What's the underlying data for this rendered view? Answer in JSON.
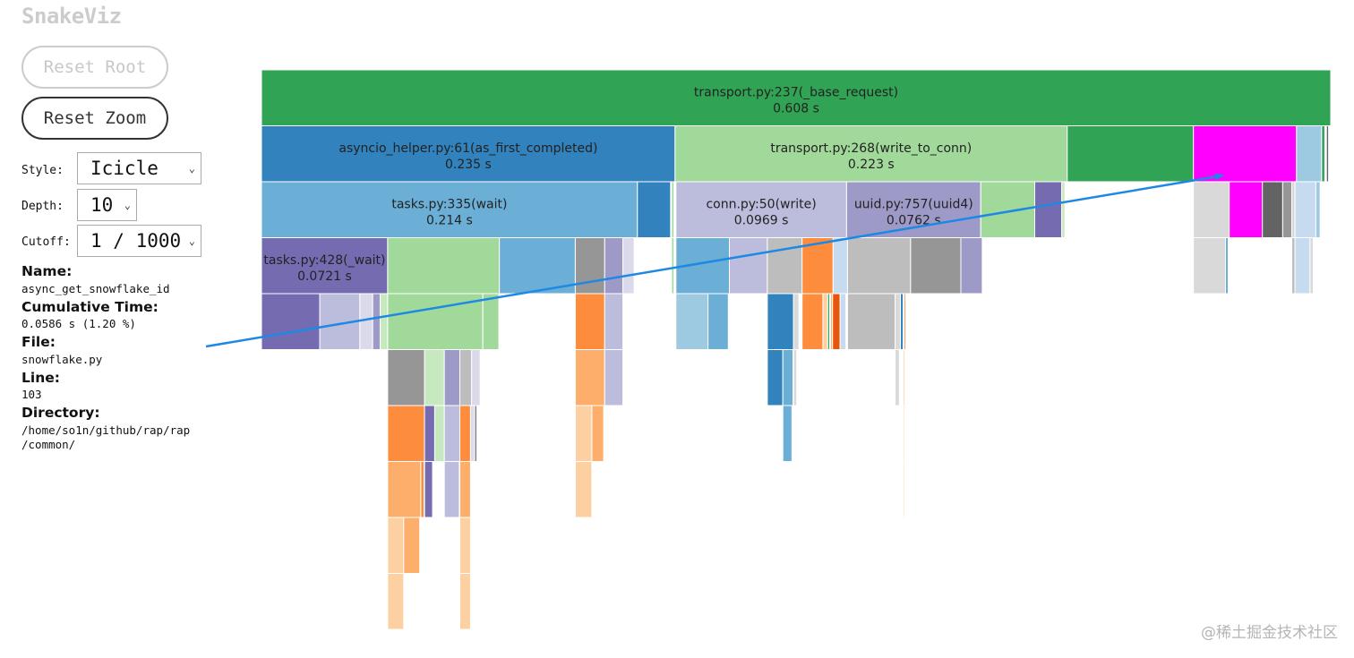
{
  "app": {
    "title": "SnakeViz"
  },
  "buttons": {
    "reset_root": "Reset Root",
    "reset_zoom": "Reset Zoom"
  },
  "controls": {
    "style": {
      "label": "Style:",
      "value": "Icicle"
    },
    "depth": {
      "label": "Depth:",
      "value": "10"
    },
    "cutoff": {
      "label": "Cutoff:",
      "value": "1 / 1000"
    }
  },
  "info": {
    "name_label": "Name:",
    "name": "async_get_snowflake_id",
    "cumtime_label": "Cumulative Time:",
    "cumtime": "0.0586 s (1.20 %)",
    "file_label": "File:",
    "file": "snowflake.py",
    "line_label": "Line:",
    "line": "103",
    "dir_label": "Directory:",
    "dir_line1": "/home/so1n/github/rap/rap",
    "dir_line2": "/common/"
  },
  "colors": {
    "dark_green": "#31a354",
    "light_green": "#a1d99b",
    "pale_green": "#c7e9c0",
    "dark_blue": "#3182bd",
    "mid_blue": "#6baed6",
    "light_blue": "#9ecae1",
    "pale_blue": "#c6dbef",
    "dark_purple": "#756bb1",
    "mid_purple": "#9e9ac8",
    "light_purple": "#bcbddc",
    "pale_purple": "#dadaeb",
    "dark_orange": "#e6550d",
    "orange": "#fd8d3c",
    "light_orange": "#fdae6b",
    "pale_orange": "#fdd0a2",
    "dark_gray": "#636363",
    "gray": "#969696",
    "light_gray": "#bdbdbd",
    "pale_gray": "#d9d9d9",
    "highlight": "#ff00ff",
    "arrow": "#1e88e5"
  },
  "chart_data": {
    "type": "icicle",
    "total_time_s": 0.608,
    "highlighted": "async_get_snowflake_id",
    "nodes": [
      {
        "depth": 0,
        "start": 0.0,
        "width": 1.0,
        "color": "dark_green",
        "label": "transport.py:237(_base_request)",
        "time": "0.608 s"
      },
      {
        "depth": 1,
        "start": 0.0,
        "width": 0.3868,
        "color": "dark_blue",
        "label": "asyncio_helper.py:61(as_first_completed)",
        "time": "0.235 s"
      },
      {
        "depth": 1,
        "start": 0.3868,
        "width": 0.3668,
        "color": "light_green",
        "label": "transport.py:268(write_to_conn)",
        "time": "0.223 s"
      },
      {
        "depth": 1,
        "start": 0.7536,
        "width": 0.118,
        "color": "dark_green"
      },
      {
        "depth": 1,
        "start": 0.8716,
        "width": 0.0964,
        "color": "highlight"
      },
      {
        "depth": 1,
        "start": 0.968,
        "width": 0.0235,
        "color": "light_blue"
      },
      {
        "depth": 1,
        "start": 0.9915,
        "width": 0.003,
        "color": "dark_green"
      },
      {
        "depth": 1,
        "start": 0.996,
        "width": 0.002,
        "color": "dark_gray"
      },
      {
        "depth": 2,
        "start": 0.0,
        "width": 0.3516,
        "color": "mid_blue",
        "label": "tasks.py:335(wait)",
        "time": "0.214 s"
      },
      {
        "depth": 2,
        "start": 0.3516,
        "width": 0.031,
        "color": "dark_blue"
      },
      {
        "depth": 2,
        "start": 0.3836,
        "width": 0.0022,
        "color": "light_green"
      },
      {
        "depth": 2,
        "start": 0.3876,
        "width": 0.1596,
        "color": "light_purple",
        "label": "conn.py:50(write)",
        "time": "0.0969 s"
      },
      {
        "depth": 2,
        "start": 0.5472,
        "width": 0.1255,
        "color": "mid_purple",
        "label": "uuid.py:757(uuid4)",
        "time": "0.0762 s"
      },
      {
        "depth": 2,
        "start": 0.6727,
        "width": 0.0505,
        "color": "light_green"
      },
      {
        "depth": 2,
        "start": 0.7232,
        "width": 0.0252,
        "color": "dark_purple"
      },
      {
        "depth": 2,
        "start": 0.7484,
        "width": 0.003,
        "color": "pale_green"
      },
      {
        "depth": 2,
        "start": 0.8716,
        "width": 0.0335,
        "color": "pale_gray"
      },
      {
        "depth": 2,
        "start": 0.9051,
        "width": 0.031,
        "color": "highlight"
      },
      {
        "depth": 2,
        "start": 0.9361,
        "width": 0.019,
        "color": "dark_gray"
      },
      {
        "depth": 2,
        "start": 0.9551,
        "width": 0.0085,
        "color": "gray"
      },
      {
        "depth": 2,
        "start": 0.9636,
        "width": 0.003,
        "color": "pale_gray"
      },
      {
        "depth": 2,
        "start": 0.9666,
        "width": 0.0195,
        "color": "pale_blue"
      },
      {
        "depth": 2,
        "start": 0.9861,
        "width": 0.004,
        "color": "light_blue"
      },
      {
        "depth": 3,
        "start": 0.0,
        "width": 0.118,
        "color": "dark_purple",
        "label": "tasks.py:428(_wait)",
        "time": "0.0721 s"
      },
      {
        "depth": 3,
        "start": 0.118,
        "width": 0.1045,
        "color": "light_green"
      },
      {
        "depth": 3,
        "start": 0.2225,
        "width": 0.071,
        "color": "mid_blue"
      },
      {
        "depth": 3,
        "start": 0.2935,
        "width": 0.0275,
        "color": "gray"
      },
      {
        "depth": 3,
        "start": 0.321,
        "width": 0.017,
        "color": "mid_purple"
      },
      {
        "depth": 3,
        "start": 0.338,
        "width": 0.0105,
        "color": "pale_purple"
      },
      {
        "depth": 3,
        "start": 0.3836,
        "width": 0.0022,
        "color": "light_green"
      },
      {
        "depth": 3,
        "start": 0.3876,
        "width": 0.05,
        "color": "mid_blue"
      },
      {
        "depth": 3,
        "start": 0.4376,
        "width": 0.0355,
        "color": "light_purple"
      },
      {
        "depth": 3,
        "start": 0.4731,
        "width": 0.0325,
        "color": "light_gray"
      },
      {
        "depth": 3,
        "start": 0.5056,
        "width": 0.029,
        "color": "orange"
      },
      {
        "depth": 3,
        "start": 0.5346,
        "width": 0.0135,
        "color": "pale_blue"
      },
      {
        "depth": 3,
        "start": 0.5481,
        "width": 0.059,
        "color": "light_gray"
      },
      {
        "depth": 3,
        "start": 0.6071,
        "width": 0.047,
        "color": "gray"
      },
      {
        "depth": 3,
        "start": 0.6541,
        "width": 0.02,
        "color": "mid_purple"
      },
      {
        "depth": 3,
        "start": 0.8716,
        "width": 0.03,
        "color": "pale_gray"
      },
      {
        "depth": 3,
        "start": 0.9016,
        "width": 0.0025,
        "color": "mid_blue"
      },
      {
        "depth": 3,
        "start": 0.9636,
        "width": 0.003,
        "color": "light_gray"
      },
      {
        "depth": 3,
        "start": 0.9666,
        "width": 0.014,
        "color": "pale_blue"
      },
      {
        "depth": 3,
        "start": 0.9806,
        "width": 0.003,
        "color": "pale_gray"
      },
      {
        "depth": 4,
        "start": 0.0,
        "width": 0.0545,
        "color": "dark_purple"
      },
      {
        "depth": 4,
        "start": 0.0545,
        "width": 0.0375,
        "color": "light_purple"
      },
      {
        "depth": 4,
        "start": 0.092,
        "width": 0.012,
        "color": "pale_purple"
      },
      {
        "depth": 4,
        "start": 0.104,
        "width": 0.007,
        "color": "mid_purple"
      },
      {
        "depth": 4,
        "start": 0.111,
        "width": 0.007,
        "color": "pale_green"
      },
      {
        "depth": 4,
        "start": 0.118,
        "width": 0.089,
        "color": "light_green"
      },
      {
        "depth": 4,
        "start": 0.207,
        "width": 0.015,
        "color": "light_green"
      },
      {
        "depth": 4,
        "start": 0.2935,
        "width": 0.0275,
        "color": "orange"
      },
      {
        "depth": 4,
        "start": 0.321,
        "width": 0.017,
        "color": "light_purple"
      },
      {
        "depth": 4,
        "start": 0.3876,
        "width": 0.03,
        "color": "light_blue"
      },
      {
        "depth": 4,
        "start": 0.4176,
        "width": 0.019,
        "color": "mid_blue"
      },
      {
        "depth": 4,
        "start": 0.4731,
        "width": 0.0245,
        "color": "dark_blue"
      },
      {
        "depth": 4,
        "start": 0.4976,
        "width": 0.005,
        "color": "pale_gray"
      },
      {
        "depth": 4,
        "start": 0.5056,
        "width": 0.0195,
        "color": "orange"
      },
      {
        "depth": 4,
        "start": 0.5251,
        "width": 0.0045,
        "color": "pale_orange"
      },
      {
        "depth": 4,
        "start": 0.5296,
        "width": 0.0018,
        "color": "dark_green"
      },
      {
        "depth": 4,
        "start": 0.5321,
        "width": 0.002,
        "color": "light_orange"
      },
      {
        "depth": 4,
        "start": 0.5341,
        "width": 0.007,
        "color": "dark_orange"
      },
      {
        "depth": 4,
        "start": 0.5411,
        "width": 0.0055,
        "color": "pale_blue"
      },
      {
        "depth": 4,
        "start": 0.5481,
        "width": 0.0445,
        "color": "light_gray"
      },
      {
        "depth": 4,
        "start": 0.5926,
        "width": 0.005,
        "color": "pale_gray"
      },
      {
        "depth": 4,
        "start": 0.5976,
        "width": 0.0025,
        "color": "dark_blue"
      },
      {
        "depth": 4,
        "start": 0.6011,
        "width": 0.0015,
        "color": "orange"
      },
      {
        "depth": 5,
        "start": 0.118,
        "width": 0.0345,
        "color": "gray"
      },
      {
        "depth": 5,
        "start": 0.1525,
        "width": 0.0185,
        "color": "pale_green"
      },
      {
        "depth": 5,
        "start": 0.171,
        "width": 0.0145,
        "color": "mid_purple"
      },
      {
        "depth": 5,
        "start": 0.1855,
        "width": 0.011,
        "color": "light_gray"
      },
      {
        "depth": 5,
        "start": 0.1965,
        "width": 0.008,
        "color": "pale_purple"
      },
      {
        "depth": 5,
        "start": 0.2935,
        "width": 0.0275,
        "color": "light_orange"
      },
      {
        "depth": 5,
        "start": 0.321,
        "width": 0.017,
        "color": "light_purple"
      },
      {
        "depth": 5,
        "start": 0.4731,
        "width": 0.0145,
        "color": "dark_blue"
      },
      {
        "depth": 5,
        "start": 0.4876,
        "width": 0.0095,
        "color": "mid_blue"
      },
      {
        "depth": 5,
        "start": 0.4976,
        "width": 0.003,
        "color": "pale_gray"
      },
      {
        "depth": 5,
        "start": 0.5926,
        "width": 0.004,
        "color": "pale_gray"
      },
      {
        "depth": 5,
        "start": 0.6001,
        "width": 0.0012,
        "color": "light_orange"
      },
      {
        "depth": 6,
        "start": 0.118,
        "width": 0.0345,
        "color": "orange"
      },
      {
        "depth": 6,
        "start": 0.1525,
        "width": 0.0095,
        "color": "dark_purple"
      },
      {
        "depth": 6,
        "start": 0.162,
        "width": 0.009,
        "color": "pale_green"
      },
      {
        "depth": 6,
        "start": 0.171,
        "width": 0.0145,
        "color": "light_purple"
      },
      {
        "depth": 6,
        "start": 0.1855,
        "width": 0.01,
        "color": "orange"
      },
      {
        "depth": 6,
        "start": 0.1955,
        "width": 0.004,
        "color": "pale_purple"
      },
      {
        "depth": 6,
        "start": 0.1995,
        "width": 0.0018,
        "color": "dark_gray"
      },
      {
        "depth": 6,
        "start": 0.2935,
        "width": 0.0155,
        "color": "pale_orange"
      },
      {
        "depth": 6,
        "start": 0.309,
        "width": 0.011,
        "color": "light_orange"
      },
      {
        "depth": 6,
        "start": 0.4876,
        "width": 0.0085,
        "color": "mid_blue"
      },
      {
        "depth": 6,
        "start": 0.6001,
        "width": 0.001,
        "color": "light_orange"
      },
      {
        "depth": 7,
        "start": 0.118,
        "width": 0.031,
        "color": "light_orange"
      },
      {
        "depth": 7,
        "start": 0.149,
        "width": 0.003,
        "color": "orange"
      },
      {
        "depth": 7,
        "start": 0.1525,
        "width": 0.0075,
        "color": "dark_purple"
      },
      {
        "depth": 7,
        "start": 0.171,
        "width": 0.014,
        "color": "light_purple"
      },
      {
        "depth": 7,
        "start": 0.1855,
        "width": 0.01,
        "color": "light_orange"
      },
      {
        "depth": 7,
        "start": 0.2935,
        "width": 0.0155,
        "color": "pale_orange"
      },
      {
        "depth": 7,
        "start": 0.6001,
        "width": 0.001,
        "color": "light_orange"
      },
      {
        "depth": 8,
        "start": 0.118,
        "width": 0.015,
        "color": "pale_orange"
      },
      {
        "depth": 8,
        "start": 0.133,
        "width": 0.015,
        "color": "light_orange"
      },
      {
        "depth": 8,
        "start": 0.1855,
        "width": 0.01,
        "color": "pale_orange"
      },
      {
        "depth": 9,
        "start": 0.118,
        "width": 0.015,
        "color": "pale_orange"
      },
      {
        "depth": 9,
        "start": 0.1855,
        "width": 0.01,
        "color": "pale_orange"
      }
    ]
  },
  "watermark": "@稀土掘金技术社区"
}
